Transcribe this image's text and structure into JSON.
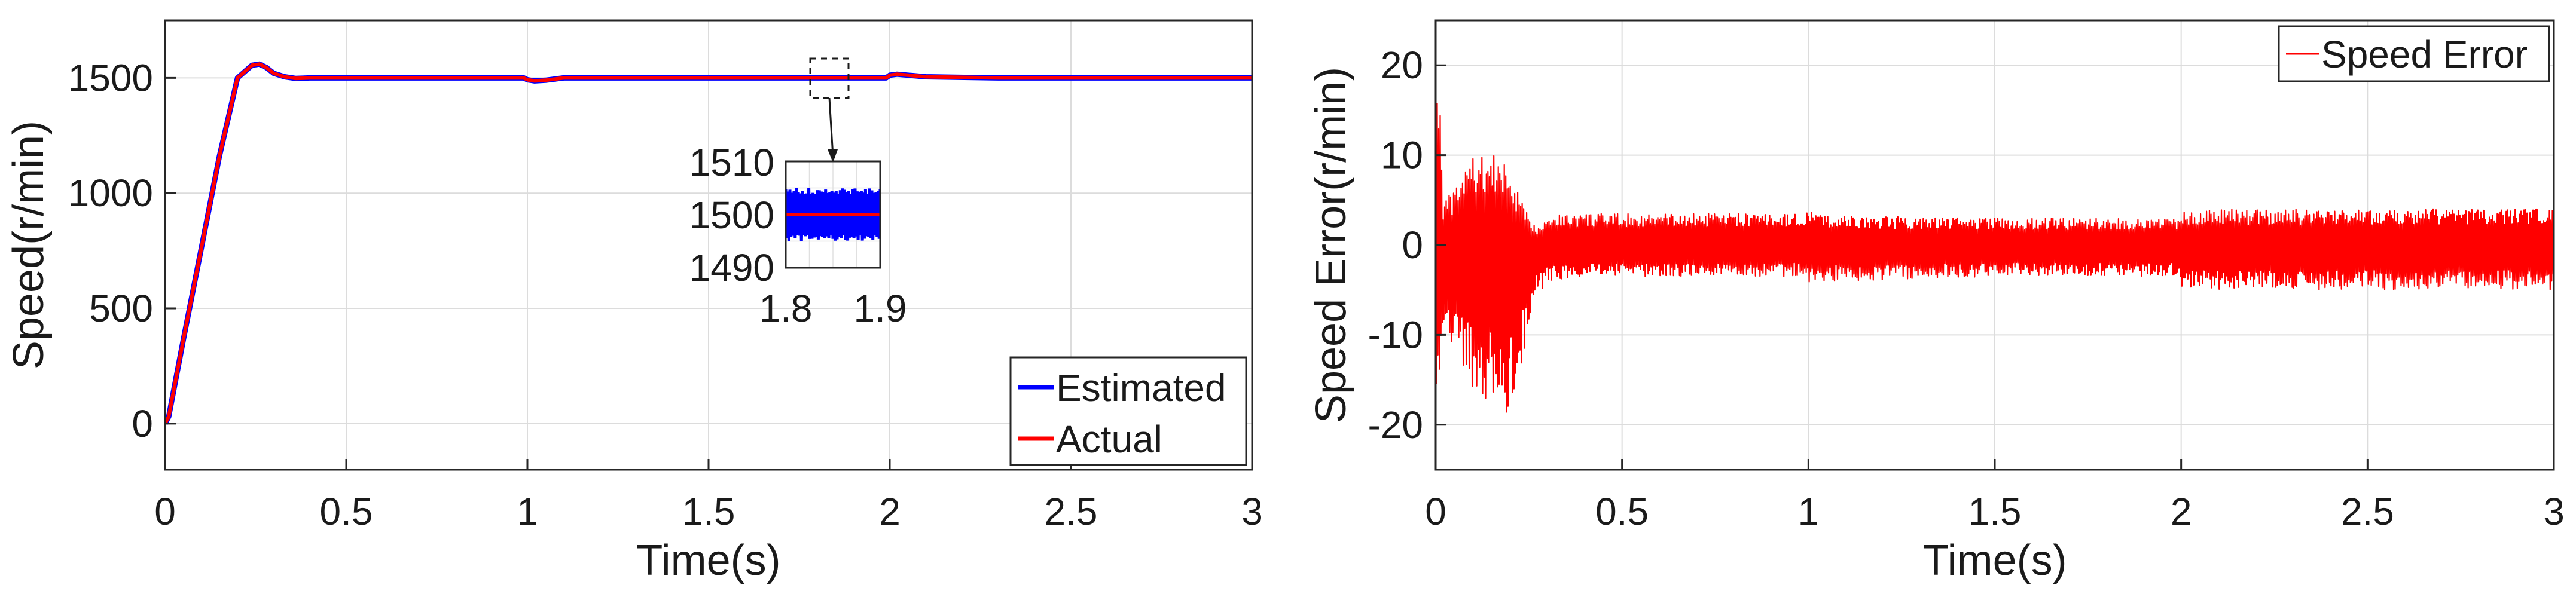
{
  "chart_data": [
    {
      "type": "line",
      "title": "",
      "xlabel": "Time(s)",
      "ylabel": "Speed(r/min)",
      "xlim": [
        0,
        3
      ],
      "ylim": [
        -200,
        1750
      ],
      "xticks": [
        0,
        0.5,
        1,
        1.5,
        2,
        2.5,
        3
      ],
      "xtick_labels": [
        "0",
        "0.5",
        "1",
        "1.5",
        "2",
        "2.5",
        "3"
      ],
      "yticks": [
        0,
        500,
        1000,
        1500
      ],
      "ytick_labels": [
        "0",
        "500",
        "1000",
        "1500"
      ],
      "grid": true,
      "legend_position": "bottom-right",
      "series": [
        {
          "name": "Estimated",
          "color": "#0000ff",
          "x": [
            0,
            0.01,
            0.05,
            0.1,
            0.15,
            0.2,
            0.24,
            0.26,
            0.28,
            0.3,
            0.33,
            0.36,
            0.4,
            0.5,
            0.8,
            0.99,
            1.0,
            1.02,
            1.05,
            1.1,
            1.3,
            1.6,
            1.99,
            2.0,
            2.02,
            2.05,
            2.1,
            2.3,
            2.6,
            3.0
          ],
          "y": [
            0,
            30,
            360,
            760,
            1160,
            1500,
            1555,
            1560,
            1545,
            1520,
            1505,
            1498,
            1500,
            1500,
            1500,
            1500,
            1492,
            1487,
            1490,
            1500,
            1500,
            1500,
            1500,
            1512,
            1516,
            1512,
            1505,
            1500,
            1500,
            1500
          ]
        },
        {
          "name": "Actual",
          "color": "#ff0000",
          "x": [
            0,
            0.01,
            0.05,
            0.1,
            0.15,
            0.2,
            0.24,
            0.26,
            0.28,
            0.3,
            0.33,
            0.36,
            0.4,
            0.5,
            0.8,
            0.99,
            1.0,
            1.02,
            1.05,
            1.1,
            1.3,
            1.6,
            1.99,
            2.0,
            2.02,
            2.05,
            2.1,
            2.3,
            2.6,
            3.0
          ],
          "y": [
            0,
            30,
            360,
            760,
            1160,
            1500,
            1555,
            1560,
            1545,
            1520,
            1505,
            1498,
            1500,
            1500,
            1500,
            1500,
            1492,
            1487,
            1490,
            1500,
            1500,
            1500,
            1500,
            1512,
            1516,
            1512,
            1505,
            1500,
            1500,
            1500
          ]
        }
      ],
      "inset": {
        "xlim": [
          1.8,
          1.9
        ],
        "ylim": [
          1490,
          1510
        ],
        "xtick_labels": [
          "1.8",
          "1.9"
        ],
        "ytick_labels": [
          "1510",
          "1500",
          "1490"
        ],
        "estimated_band": [
          1495,
          1505
        ],
        "actual_value": 1500
      }
    },
    {
      "type": "line",
      "title": "",
      "xlabel": "Time(s)",
      "ylabel": "Speed Error(r/min)",
      "xlim": [
        0,
        3
      ],
      "ylim": [
        -25,
        25
      ],
      "xticks": [
        0,
        0.5,
        1,
        1.5,
        2,
        2.5,
        3
      ],
      "xtick_labels": [
        "0",
        "0.5",
        "1",
        "1.5",
        "2",
        "2.5",
        "3"
      ],
      "yticks": [
        -20,
        -10,
        0,
        10,
        20
      ],
      "ytick_labels": [
        "-20",
        "-10",
        "0",
        "10",
        "20"
      ],
      "grid": true,
      "legend_position": "top-right",
      "series": [
        {
          "name": "Speed Error",
          "color": "#ff0000",
          "envelope": {
            "t": [
              0,
              0.01,
              0.02,
              0.05,
              0.08,
              0.1,
              0.13,
              0.16,
              0.19,
              0.22,
              0.25,
              0.27,
              0.3,
              0.4,
              0.6,
              0.8,
              0.99,
              1.0,
              1.01,
              1.1,
              1.5,
              1.99,
              2.0,
              2.01,
              2.2,
              2.6,
              3.0
            ],
            "upper": [
              20,
              19,
              5,
              6,
              9,
              10,
              10,
              10,
              9,
              6,
              3,
              2,
              3.5,
              3.5,
              3.5,
              3.5,
              3.5,
              4.5,
              3.5,
              3.2,
              3.0,
              3.0,
              4,
              4,
              4,
              4,
              4
            ],
            "lower": [
              -18,
              -15,
              -10,
              -12,
              -14,
              -16,
              -17,
              -18,
              -20,
              -15,
              -10,
              -6,
              -4,
              -3.5,
              -3.5,
              -3.5,
              -3.5,
              -4.5,
              -4,
              -4,
              -3.5,
              -3.5,
              -4.5,
              -5,
              -5,
              -5,
              -5
            ]
          }
        }
      ]
    }
  ]
}
